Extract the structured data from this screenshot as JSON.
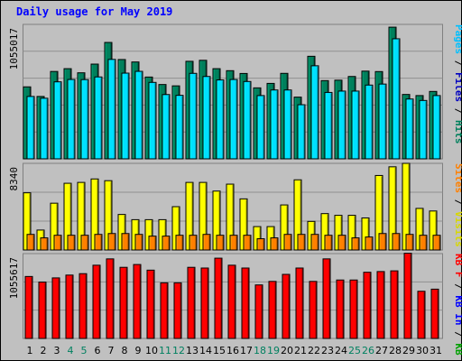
{
  "chart_data": {
    "type": "bar",
    "title": "Daily usage for May 2019",
    "categories": [
      "1",
      "2",
      "3",
      "4",
      "5",
      "6",
      "7",
      "8",
      "9",
      "10",
      "11",
      "12",
      "13",
      "14",
      "15",
      "16",
      "17",
      "18",
      "19",
      "20",
      "21",
      "22",
      "23",
      "24",
      "25",
      "26",
      "27",
      "28",
      "29",
      "30",
      "31"
    ],
    "weekend_days": [
      "4",
      "5",
      "11",
      "12",
      "18",
      "19",
      "25",
      "26"
    ],
    "panels": [
      {
        "id": "hits",
        "ymax": 1205000,
        "ytick": "1055017",
        "right_labels": [
          {
            "text": "Pages",
            "color": "#00c0ff"
          },
          {
            "text": "Files",
            "color": "#0000c0"
          },
          {
            "text": "Hits",
            "color": "#00805c"
          }
        ],
        "series": [
          {
            "name": "Hits",
            "color": "#00805c",
            "values": [
              645000,
              559000,
              783000,
              808000,
              771000,
              849000,
              1043000,
              890000,
              868000,
              733000,
              666000,
              654000,
              874000,
              883000,
              808000,
              790000,
              765000,
              636000,
              676000,
              766000,
              553000,
              919000,
              701000,
              705000,
              738000,
              786000,
              782000,
              1180000,
              577000,
              567000,
              604000
            ]
          },
          {
            "name": "Files",
            "color": "#0000c0",
            "values": [
              320000,
              290000,
              380000,
              400000,
              380000,
              420000,
              510000,
              430000,
              420000,
              360000,
              330000,
              320000,
              430000,
              430000,
              400000,
              390000,
              380000,
              310000,
              330000,
              380000,
              270000,
              450000,
              350000,
              350000,
              360000,
              380000,
              380000,
              580000,
              290000,
              280000,
              300000
            ]
          },
          {
            "name": "Pages",
            "color": "#00e0ff",
            "values": [
              559000,
              543000,
              690000,
              711000,
              710000,
              734000,
              891000,
              768000,
              784000,
              685000,
              576000,
              569000,
              766000,
              738000,
              707000,
              711000,
              693000,
              567000,
              617000,
              617000,
              485000,
              834000,
              595000,
              607000,
              607000,
              661000,
              670000,
              1076000,
              536000,
              523000,
              567000
            ]
          }
        ]
      },
      {
        "id": "visits",
        "ymax": 10000,
        "ytick": "8340",
        "right_labels": [
          {
            "text": "Sites",
            "color": "#ff8000"
          },
          {
            "text": "Visits",
            "color": "#d8d800"
          }
        ],
        "series": [
          {
            "name": "Visits",
            "color": "#ffff00",
            "values": [
              6600,
              2300,
              5400,
              7700,
              7800,
              8200,
              8000,
              4100,
              3500,
              3500,
              3500,
              5000,
              7800,
              7800,
              6800,
              7600,
              5900,
              2700,
              2700,
              5200,
              8100,
              3300,
              4200,
              4000,
              4000,
              3700,
              8600,
              9600,
              10000,
              4800,
              4500
            ]
          },
          {
            "name": "Sites",
            "color": "#ff8000",
            "values": [
              1800,
              1400,
              1700,
              1700,
              1700,
              1800,
              1900,
              1900,
              1800,
              1600,
              1600,
              1700,
              1700,
              1800,
              1700,
              1700,
              1700,
              1300,
              1400,
              1800,
              1800,
              1800,
              1700,
              1700,
              1400,
              1500,
              1900,
              1900,
              1800,
              1700,
              1700
            ]
          }
        ]
      },
      {
        "id": "kbytes",
        "ymax": 1205000,
        "ytick": "1055617",
        "right_labels": [
          {
            "text": "KB F",
            "color": "#ff0000"
          },
          {
            "text": "KB In",
            "color": "#0000ff"
          },
          {
            "text": "KB Out",
            "color": "#00a000"
          }
        ],
        "series": [
          {
            "name": "KB F",
            "color": "#ff0000",
            "values": [
              880000,
              800000,
              860000,
              900000,
              920000,
              1040000,
              1130000,
              1010000,
              1050000,
              970000,
              790000,
              790000,
              1010000,
              1000000,
              1140000,
              1040000,
              1000000,
              760000,
              810000,
              910000,
              1000000,
              810000,
              1130000,
              830000,
              830000,
              940000,
              950000,
              960000,
              1210000,
              670000,
              700000
            ]
          }
        ]
      }
    ]
  }
}
